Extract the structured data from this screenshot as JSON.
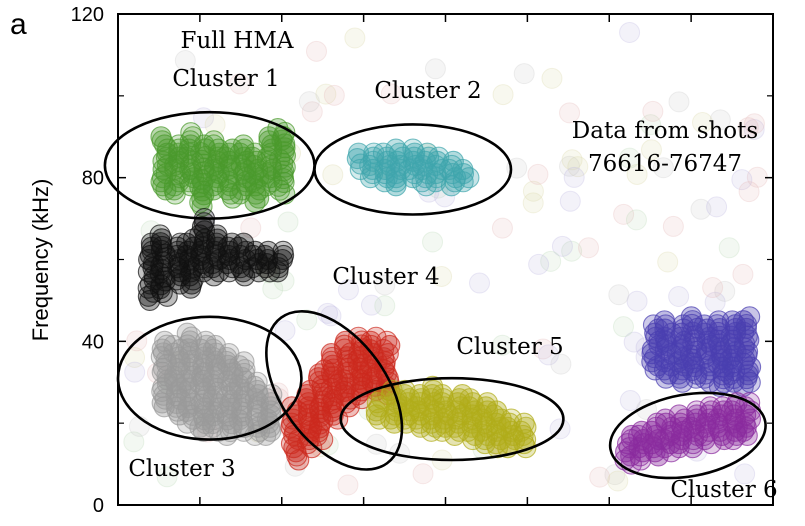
{
  "chart_data": {
    "type": "scatter",
    "panel_label": "a",
    "title": "",
    "xlabel": "",
    "ylabel": "Frequency (kHz)",
    "ylim": [
      0,
      120
    ],
    "yticks": [
      0,
      40,
      80,
      120
    ],
    "x_tick_count": 7,
    "xlim": [
      0,
      100
    ],
    "grid": false,
    "legend": "none",
    "annotations": {
      "full_hma": "Full HMA",
      "data_from": "Data from shots",
      "shots": "76616-76747"
    },
    "series": [
      {
        "name": "Cluster 1",
        "color": "#4a9a2c",
        "columns": [
          {
            "x": 7,
            "ymin": 77,
            "ymax": 90
          },
          {
            "x": 9,
            "ymin": 76,
            "ymax": 88
          },
          {
            "x": 11,
            "ymin": 78,
            "ymax": 91
          },
          {
            "x": 13,
            "ymin": 73,
            "ymax": 88
          },
          {
            "x": 15,
            "ymin": 77,
            "ymax": 89
          },
          {
            "x": 17,
            "ymin": 75,
            "ymax": 87
          },
          {
            "x": 19,
            "ymin": 76,
            "ymax": 88
          },
          {
            "x": 21,
            "ymin": 74,
            "ymax": 86
          },
          {
            "x": 23,
            "ymin": 78,
            "ymax": 90
          },
          {
            "x": 25,
            "ymin": 76,
            "ymax": 92
          }
        ]
      },
      {
        "name": "Cluster 2",
        "color": "#3fa5ad",
        "columns": [
          {
            "x": 37,
            "ymin": 82,
            "ymax": 86
          },
          {
            "x": 39,
            "ymin": 80,
            "ymax": 86
          },
          {
            "x": 41,
            "ymin": 79,
            "ymax": 86
          },
          {
            "x": 43,
            "ymin": 78,
            "ymax": 87
          },
          {
            "x": 45,
            "ymin": 80,
            "ymax": 87
          },
          {
            "x": 47,
            "ymin": 78,
            "ymax": 86
          },
          {
            "x": 49,
            "ymin": 79,
            "ymax": 85
          },
          {
            "x": 51,
            "ymin": 78,
            "ymax": 84
          },
          {
            "x": 53,
            "ymin": 79,
            "ymax": 82
          }
        ]
      },
      {
        "name": "",
        "color": "#111111",
        "columns": [
          {
            "x": 5,
            "ymin": 50,
            "ymax": 64
          },
          {
            "x": 7,
            "ymin": 51,
            "ymax": 66
          },
          {
            "x": 9,
            "ymin": 54,
            "ymax": 64
          },
          {
            "x": 11,
            "ymin": 53,
            "ymax": 65
          },
          {
            "x": 13,
            "ymin": 57,
            "ymax": 70
          },
          {
            "x": 15,
            "ymin": 56,
            "ymax": 66
          },
          {
            "x": 17,
            "ymin": 57,
            "ymax": 64
          },
          {
            "x": 19,
            "ymin": 56,
            "ymax": 64
          },
          {
            "x": 21,
            "ymin": 57,
            "ymax": 62
          },
          {
            "x": 23,
            "ymin": 57,
            "ymax": 62
          },
          {
            "x": 25,
            "ymin": 57,
            "ymax": 62
          }
        ]
      },
      {
        "name": "Cluster 3",
        "color": "#9a9a9a",
        "columns": [
          {
            "x": 7,
            "ymin": 24,
            "ymax": 40
          },
          {
            "x": 9,
            "ymin": 22,
            "ymax": 39
          },
          {
            "x": 11,
            "ymin": 20,
            "ymax": 42
          },
          {
            "x": 13,
            "ymin": 18,
            "ymax": 40
          },
          {
            "x": 15,
            "ymin": 18,
            "ymax": 39
          },
          {
            "x": 17,
            "ymin": 17,
            "ymax": 37
          },
          {
            "x": 19,
            "ymin": 18,
            "ymax": 35
          },
          {
            "x": 21,
            "ymin": 17,
            "ymax": 30
          },
          {
            "x": 23,
            "ymin": 17,
            "ymax": 27
          }
        ]
      },
      {
        "name": "Cluster 4",
        "color": "#cc2a1e",
        "columns": [
          {
            "x": 27,
            "ymin": 11,
            "ymax": 24
          },
          {
            "x": 29,
            "ymin": 14,
            "ymax": 28
          },
          {
            "x": 31,
            "ymin": 16,
            "ymax": 33
          },
          {
            "x": 33,
            "ymin": 21,
            "ymax": 37
          },
          {
            "x": 35,
            "ymin": 24,
            "ymax": 40
          },
          {
            "x": 37,
            "ymin": 26,
            "ymax": 41
          },
          {
            "x": 39,
            "ymin": 28,
            "ymax": 41
          },
          {
            "x": 41,
            "ymin": 27,
            "ymax": 40
          }
        ]
      },
      {
        "name": "Cluster 5",
        "color": "#b1ad1a",
        "columns": [
          {
            "x": 40,
            "ymin": 21,
            "ymax": 26
          },
          {
            "x": 42,
            "ymin": 20,
            "ymax": 28
          },
          {
            "x": 44,
            "ymin": 20,
            "ymax": 28
          },
          {
            "x": 46,
            "ymin": 19,
            "ymax": 27
          },
          {
            "x": 48,
            "ymin": 18,
            "ymax": 29
          },
          {
            "x": 50,
            "ymin": 18,
            "ymax": 27
          },
          {
            "x": 52,
            "ymin": 17,
            "ymax": 27
          },
          {
            "x": 54,
            "ymin": 16,
            "ymax": 26
          },
          {
            "x": 56,
            "ymin": 15,
            "ymax": 25
          },
          {
            "x": 58,
            "ymin": 14,
            "ymax": 23
          },
          {
            "x": 60,
            "ymin": 14,
            "ymax": 21
          },
          {
            "x": 62,
            "ymin": 14,
            "ymax": 20
          }
        ]
      },
      {
        "name": "",
        "color": "#4a3fb0",
        "columns": [
          {
            "x": 82,
            "ymin": 33,
            "ymax": 44
          },
          {
            "x": 84,
            "ymin": 31,
            "ymax": 45
          },
          {
            "x": 86,
            "ymin": 30,
            "ymax": 44
          },
          {
            "x": 88,
            "ymin": 31,
            "ymax": 46
          },
          {
            "x": 90,
            "ymin": 30,
            "ymax": 44
          },
          {
            "x": 92,
            "ymin": 29,
            "ymax": 45
          },
          {
            "x": 94,
            "ymin": 30,
            "ymax": 45
          },
          {
            "x": 96,
            "ymin": 29,
            "ymax": 46
          }
        ]
      },
      {
        "name": "Cluster 6",
        "color": "#8a2b9e",
        "columns": [
          {
            "x": 78,
            "ymin": 10,
            "ymax": 17
          },
          {
            "x": 80,
            "ymin": 11,
            "ymax": 18
          },
          {
            "x": 82,
            "ymin": 12,
            "ymax": 20
          },
          {
            "x": 84,
            "ymin": 13,
            "ymax": 21
          },
          {
            "x": 86,
            "ymin": 14,
            "ymax": 22
          },
          {
            "x": 88,
            "ymin": 14,
            "ymax": 23
          },
          {
            "x": 90,
            "ymin": 15,
            "ymax": 24
          },
          {
            "x": 92,
            "ymin": 16,
            "ymax": 24
          },
          {
            "x": 94,
            "ymin": 16,
            "ymax": 25
          },
          {
            "x": 96,
            "ymin": 17,
            "ymax": 25
          }
        ]
      }
    ],
    "cluster_regions": [
      {
        "label": "Cluster 1",
        "cx": 14,
        "cy": 83,
        "rx": 16,
        "ry": 13
      },
      {
        "label": "Cluster 2",
        "cx": 45,
        "cy": 82,
        "rx": 15,
        "ry": 11
      },
      {
        "label": "Cluster 3",
        "cx": 14,
        "cy": 31,
        "rx": 14,
        "ry": 15
      },
      {
        "label": "Cluster 4",
        "cx": 33,
        "cy": 28,
        "rx": 8,
        "ry": 22
      },
      {
        "label": "Cluster 5",
        "cx": 51,
        "cy": 21,
        "rx": 17,
        "ry": 10
      },
      {
        "label": "Cluster 6",
        "cx": 87,
        "cy": 17,
        "rx": 12,
        "ry": 10
      }
    ]
  }
}
